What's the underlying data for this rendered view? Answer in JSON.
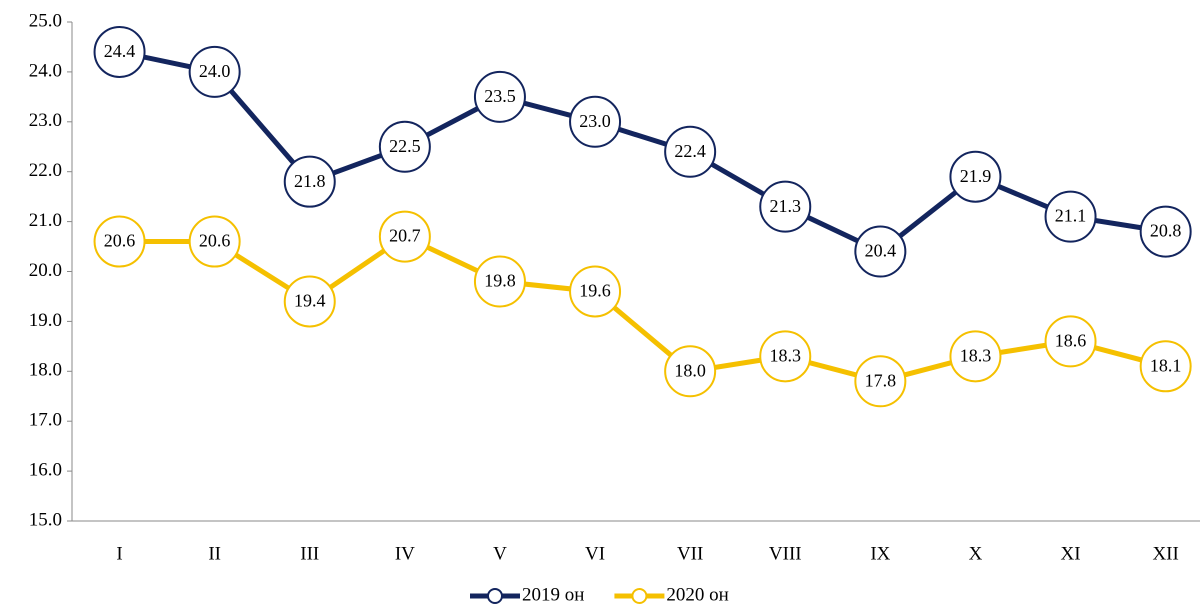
{
  "chart_data": {
    "type": "line",
    "categories": [
      "I",
      "II",
      "III",
      "IV",
      "V",
      "VI",
      "VII",
      "VIII",
      "IX",
      "X",
      "XI",
      "XII"
    ],
    "series": [
      {
        "name": "2019 он",
        "color": "#13255e",
        "values": [
          24.4,
          24.0,
          21.8,
          22.5,
          23.5,
          23.0,
          22.4,
          21.3,
          20.4,
          21.9,
          21.1,
          20.8
        ],
        "value_labels": [
          "24.4",
          "24.0",
          "21.8",
          "22.5",
          "23.5",
          "23.0",
          "22.4",
          "21.3",
          "20.4",
          "21.9",
          "21.1",
          "20.8"
        ]
      },
      {
        "name": "2020 он",
        "color": "#f5c000",
        "values": [
          20.6,
          20.6,
          19.4,
          20.7,
          19.8,
          19.6,
          18.0,
          18.3,
          17.8,
          18.3,
          18.6,
          18.1
        ],
        "value_labels": [
          "20.6",
          "20.6",
          "19.4",
          "20.7",
          "19.8",
          "19.6",
          "18.0",
          "18.3",
          "17.8",
          "18.3",
          "18.6",
          "18.1"
        ]
      }
    ],
    "ylim": [
      15,
      25
    ],
    "yticks": [
      {
        "value": 15,
        "label": "15.0"
      },
      {
        "value": 16,
        "label": "16.0"
      },
      {
        "value": 17,
        "label": "17.0"
      },
      {
        "value": 18,
        "label": "18.0"
      },
      {
        "value": 19,
        "label": "19.0"
      },
      {
        "value": 20,
        "label": "20.0"
      },
      {
        "value": 21,
        "label": "21.0"
      },
      {
        "value": 22,
        "label": "22.0"
      },
      {
        "value": 23,
        "label": "23.0"
      },
      {
        "value": 24,
        "label": "24.0"
      },
      {
        "value": 25,
        "label": "25.0"
      }
    ],
    "grid": false,
    "legend": "bottom"
  }
}
